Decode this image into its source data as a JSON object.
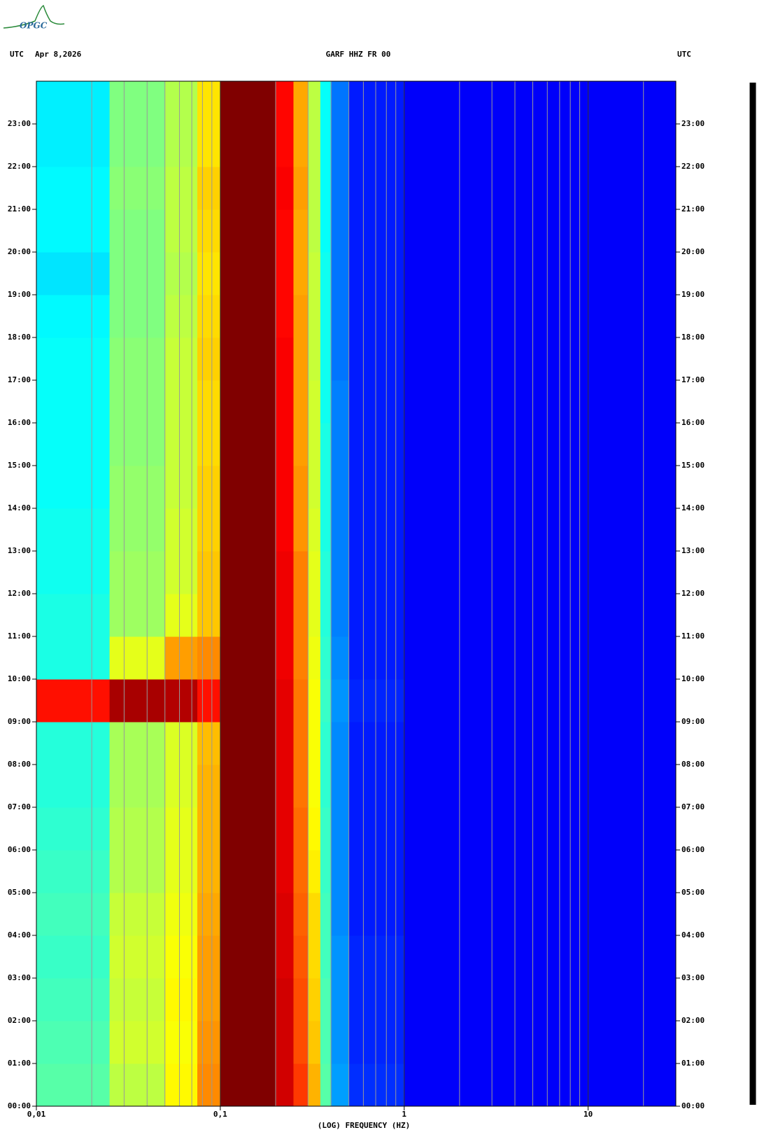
{
  "logo": "OPGC",
  "chart_data": {
    "type": "heatmap",
    "header_left": "UTC",
    "date": "Apr 8,2026",
    "title": "GARF HHZ FR 00",
    "header_right": "UTC",
    "xlabel": "(LOG) FREQUENCY (HZ)",
    "xscale": "log",
    "colormap": "jet",
    "zlim": [
      0,
      1
    ],
    "xlim": [
      0.01,
      30
    ],
    "ylim": [
      0,
      24
    ],
    "xticks": [
      {
        "value": 0.01,
        "label": "0,01"
      },
      {
        "value": 0.1,
        "label": "0,1"
      },
      1,
      10
    ],
    "xgrid": [
      0.02,
      0.03,
      0.04,
      0.05,
      0.06,
      0.07,
      0.08,
      0.09,
      0.2,
      0.3,
      0.4,
      0.5,
      0.6,
      0.7,
      0.8,
      0.9,
      2,
      3,
      4,
      5,
      6,
      7,
      8,
      9,
      20
    ],
    "yticks": [
      {
        "value": 0,
        "label": "00:00"
      },
      {
        "value": 1,
        "label": "01:00"
      },
      {
        "value": 2,
        "label": "02:00"
      },
      {
        "value": 3,
        "label": "03:00"
      },
      {
        "value": 4,
        "label": "04:00"
      },
      {
        "value": 5,
        "label": "05:00"
      },
      {
        "value": 6,
        "label": "06:00"
      },
      {
        "value": 7,
        "label": "07:00"
      },
      {
        "value": 8,
        "label": "08:00"
      },
      {
        "value": 9,
        "label": "09:00"
      },
      {
        "value": 10,
        "label": "10:00"
      },
      {
        "value": 11,
        "label": "11:00"
      },
      {
        "value": 12,
        "label": "12:00"
      },
      {
        "value": 13,
        "label": "13:00"
      },
      {
        "value": 14,
        "label": "14:00"
      },
      {
        "value": 15,
        "label": "15:00"
      },
      {
        "value": 16,
        "label": "16:00"
      },
      {
        "value": 17,
        "label": "17:00"
      },
      {
        "value": 18,
        "label": "18:00"
      },
      {
        "value": 19,
        "label": "19:00"
      },
      {
        "value": 20,
        "label": "20:00"
      },
      {
        "value": 21,
        "label": "21:00"
      },
      {
        "value": 22,
        "label": "22:00"
      },
      {
        "value": 23,
        "label": "23:00"
      }
    ],
    "x_bins": [
      0.01,
      0.025,
      0.05,
      0.075,
      0.1,
      0.2,
      0.25,
      0.3,
      0.35,
      0.4,
      0.5,
      1,
      30
    ],
    "y_bins": [
      0,
      1,
      2,
      3,
      4,
      5,
      6,
      7,
      8,
      9,
      10,
      11,
      12,
      13,
      14,
      15,
      16,
      17,
      18,
      19,
      20,
      21,
      22,
      23,
      24
    ],
    "values": [
      [
        0.46,
        0.56,
        0.63,
        0.74,
        1,
        0.92,
        0.82,
        0.7,
        0.46,
        0.28,
        0.17,
        0.12
      ],
      [
        0.45,
        0.58,
        0.62,
        0.73,
        1,
        0.92,
        0.8,
        0.68,
        0.45,
        0.27,
        0.16,
        0.12
      ],
      [
        0.44,
        0.57,
        0.63,
        0.72,
        1,
        0.92,
        0.8,
        0.67,
        0.45,
        0.27,
        0.16,
        0.12
      ],
      [
        0.43,
        0.58,
        0.62,
        0.72,
        1,
        0.91,
        0.79,
        0.66,
        0.44,
        0.27,
        0.16,
        0.12
      ],
      [
        0.44,
        0.57,
        0.61,
        0.71,
        1,
        0.91,
        0.78,
        0.66,
        0.44,
        0.26,
        0.15,
        0.12
      ],
      [
        0.43,
        0.55,
        0.6,
        0.7,
        1,
        0.9,
        0.77,
        0.64,
        0.43,
        0.26,
        0.15,
        0.12
      ],
      [
        0.42,
        0.55,
        0.6,
        0.7,
        1,
        0.9,
        0.77,
        0.63,
        0.43,
        0.26,
        0.15,
        0.12
      ],
      [
        0.41,
        0.54,
        0.59,
        0.7,
        1,
        0.9,
        0.76,
        0.62,
        0.42,
        0.26,
        0.15,
        0.12
      ],
      [
        0.41,
        0.54,
        0.59,
        0.69,
        1,
        0.9,
        0.76,
        0.62,
        0.42,
        0.26,
        0.15,
        0.12
      ],
      [
        0.86,
        0.96,
        0.95,
        0.86,
        1,
        0.9,
        0.76,
        0.62,
        0.43,
        0.27,
        0.16,
        0.12
      ],
      [
        0.4,
        0.6,
        0.72,
        0.74,
        1,
        0.89,
        0.75,
        0.61,
        0.42,
        0.26,
        0.15,
        0.12
      ],
      [
        0.4,
        0.53,
        0.6,
        0.68,
        1,
        0.89,
        0.75,
        0.6,
        0.41,
        0.25,
        0.15,
        0.12
      ],
      [
        0.39,
        0.53,
        0.58,
        0.68,
        1,
        0.89,
        0.75,
        0.6,
        0.41,
        0.25,
        0.15,
        0.12
      ],
      [
        0.39,
        0.52,
        0.58,
        0.67,
        1,
        0.88,
        0.73,
        0.59,
        0.4,
        0.25,
        0.15,
        0.12
      ],
      [
        0.38,
        0.52,
        0.57,
        0.67,
        1,
        0.88,
        0.73,
        0.58,
        0.4,
        0.25,
        0.15,
        0.12
      ],
      [
        0.38,
        0.51,
        0.57,
        0.66,
        1,
        0.88,
        0.72,
        0.58,
        0.4,
        0.25,
        0.15,
        0.12
      ],
      [
        0.38,
        0.51,
        0.57,
        0.66,
        1,
        0.88,
        0.72,
        0.58,
        0.39,
        0.25,
        0.15,
        0.12
      ],
      [
        0.38,
        0.51,
        0.57,
        0.67,
        1,
        0.88,
        0.72,
        0.57,
        0.39,
        0.24,
        0.15,
        0.12
      ],
      [
        0.37,
        0.5,
        0.56,
        0.66,
        1,
        0.87,
        0.72,
        0.57,
        0.39,
        0.24,
        0.15,
        0.12
      ],
      [
        0.35,
        0.5,
        0.55,
        0.65,
        1,
        0.87,
        0.71,
        0.57,
        0.39,
        0.24,
        0.15,
        0.12
      ],
      [
        0.37,
        0.5,
        0.56,
        0.66,
        1,
        0.87,
        0.71,
        0.56,
        0.38,
        0.24,
        0.15,
        0.12
      ],
      [
        0.37,
        0.51,
        0.56,
        0.67,
        1,
        0.88,
        0.72,
        0.56,
        0.38,
        0.24,
        0.15,
        0.12
      ],
      [
        0.36,
        0.5,
        0.55,
        0.65,
        1,
        0.87,
        0.71,
        0.56,
        0.38,
        0.24,
        0.15,
        0.12
      ],
      [
        0.36,
        0.5,
        0.55,
        0.65,
        1,
        0.87,
        0.71,
        0.56,
        0.38,
        0.24,
        0.15,
        0.12
      ]
    ]
  }
}
